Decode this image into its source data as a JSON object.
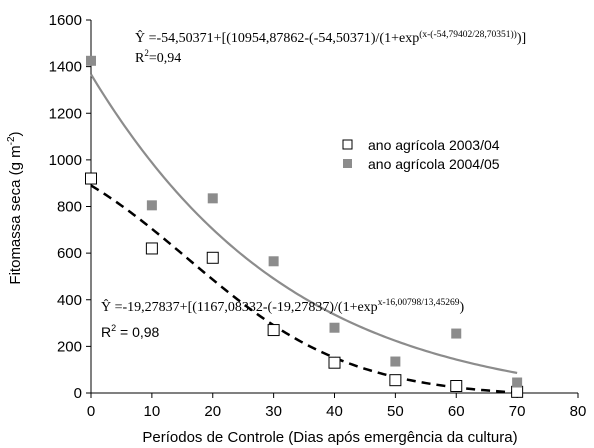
{
  "chart_data": {
    "type": "scatter",
    "xlabel": "Períodos de Controle (Dias após emergência da cultura)",
    "ylabel_main": "Fitomassa seca (g m",
    "ylabel_sup": "-2",
    "ylabel_end": ")",
    "xlim": [
      0,
      80
    ],
    "ylim": [
      0,
      1600
    ],
    "xticks": [
      "0",
      "10",
      "20",
      "30",
      "40",
      "50",
      "60",
      "70",
      "80"
    ],
    "yticks": [
      "0",
      "200",
      "400",
      "600",
      "800",
      "1000",
      "1200",
      "1400",
      "1600"
    ],
    "grid": false,
    "legend_position": "right",
    "series": [
      {
        "name": "ano agrícola 2003/04",
        "marker": "open-square",
        "color": "#000000",
        "x": [
          0,
          10,
          20,
          30,
          40,
          50,
          60,
          70
        ],
        "y": [
          920,
          620,
          580,
          270,
          130,
          55,
          30,
          5
        ],
        "fit": {
          "style": "dashed",
          "color": "#000000",
          "a": -19.27837,
          "b": 1167.08332,
          "c": 16.00798,
          "d": 13.45269
        }
      },
      {
        "name": "ano agrícola 2004/05",
        "marker": "filled-square",
        "color": "#8c8c8c",
        "x": [
          0,
          10,
          20,
          30,
          40,
          50,
          60,
          70
        ],
        "y": [
          1425,
          805,
          835,
          565,
          280,
          135,
          255,
          45
        ],
        "fit": {
          "style": "solid",
          "color": "#8c8c8c",
          "a": -54.50371,
          "b": 10954.87862,
          "c": -54.79402,
          "d": 28.70351
        }
      }
    ],
    "annotations": {
      "eq1_main": "Ŷ =-54,50371+[(10954,87862-(-54,50371)/(1+exp",
      "eq1_exp": "(x-(-54,79402/28,70351))",
      "eq1_end": ")]",
      "r2_1_main": "R",
      "r2_1_sup": "2",
      "r2_1_end": "=0,94",
      "eq2_main": "Ŷ =-19,27837+[(1167,08332-(-19,27837)/(1+exp",
      "eq2_exp": "x-16,00798/13,45269",
      "eq2_end": ")",
      "r2_2_main": "R",
      "r2_2_sup": "2",
      "r2_2_end": " = 0,98"
    }
  }
}
